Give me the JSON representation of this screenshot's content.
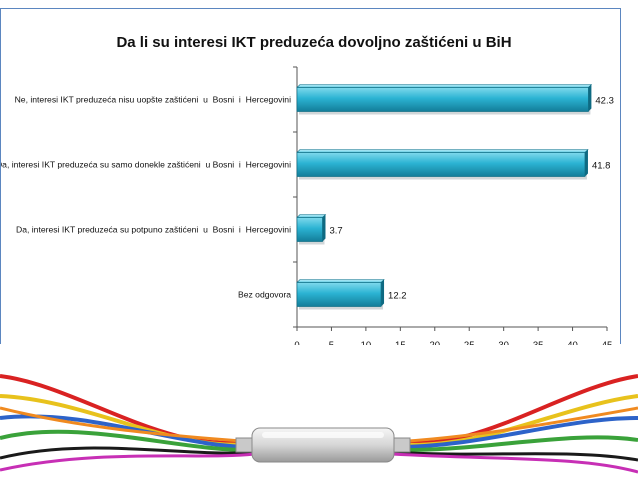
{
  "chart_data": {
    "type": "bar",
    "orientation": "horizontal",
    "title": "Da li su interesi IKT preduzeća dovoljno zaštićeni u BiH",
    "categories": [
      "Ne, interesi IKT preduzeća nisu uopšte zaštićeni  u  Bosni  i  Hercegovini",
      "Da, interesi IKT preduzeća su samo donekle zaštićeni  u Bosni  i  Hercegovini",
      "Da, interesi IKT preduzeća su potpuno zaštićeni  u  Bosni  i  Hercegovini",
      "Bez odgovora"
    ],
    "values": [
      42.3,
      41.8,
      3.7,
      12.2
    ],
    "value_labels": [
      "42.3",
      "41.8",
      "3.7",
      "12.2"
    ],
    "xlim": [
      0,
      45
    ],
    "xticks": [
      "0",
      "5",
      "10",
      "15",
      "20",
      "25",
      "30",
      "35",
      "40",
      "45"
    ],
    "grid": false,
    "legend": "none",
    "bar_color": "#2bb3d3"
  }
}
